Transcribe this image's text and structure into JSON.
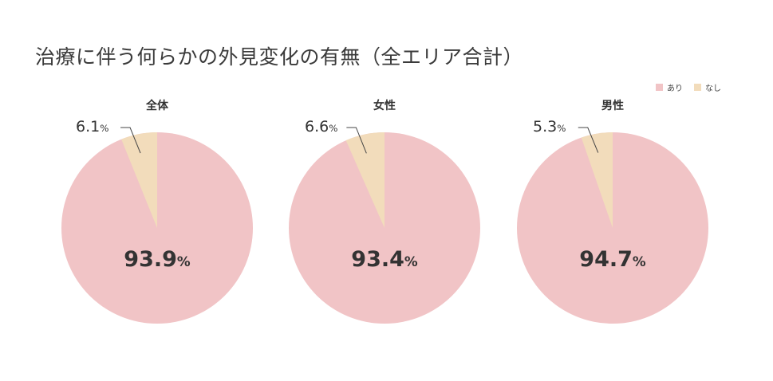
{
  "title": "治療に伴う何らかの外見変化の有無（全エリア合計）",
  "legend": [
    {
      "label": "あり",
      "color": "#f1c4c6"
    },
    {
      "label": "なし",
      "color": "#f2dcbb"
    }
  ],
  "percent_sign": "%",
  "pies": [
    {
      "title": "全体",
      "ari": "93.9",
      "nashi": "6.1"
    },
    {
      "title": "女性",
      "ari": "93.4",
      "nashi": "6.6"
    },
    {
      "title": "男性",
      "ari": "94.7",
      "nashi": "5.3"
    }
  ],
  "chart_data": {
    "type": "pie",
    "title": "治療に伴う何らかの外見変化の有無（全エリア合計）",
    "legend": [
      "あり",
      "なし"
    ],
    "legend_position": "top-right",
    "colors": {
      "あり": "#f1c4c6",
      "なし": "#f2dcbb"
    },
    "charts": [
      {
        "title": "全体",
        "labels": [
          "あり",
          "なし"
        ],
        "values": [
          93.9,
          6.1
        ]
      },
      {
        "title": "女性",
        "labels": [
          "あり",
          "なし"
        ],
        "values": [
          93.4,
          6.6
        ]
      },
      {
        "title": "男性",
        "labels": [
          "あり",
          "なし"
        ],
        "values": [
          94.7,
          5.3
        ]
      }
    ]
  }
}
